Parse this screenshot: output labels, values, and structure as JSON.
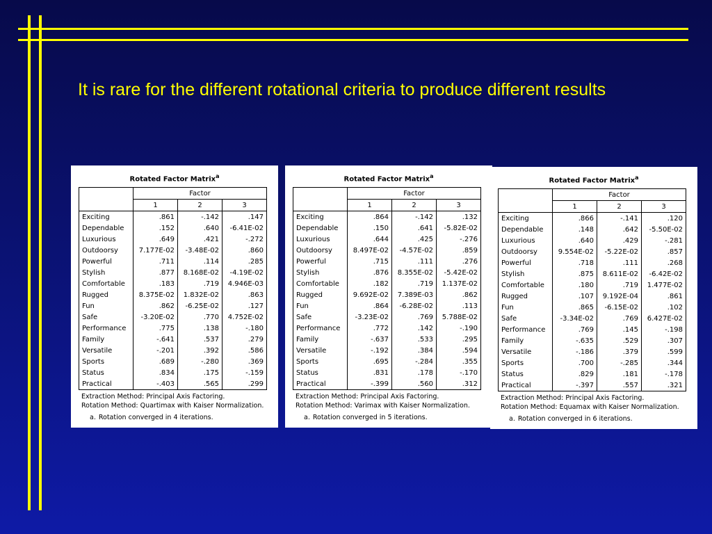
{
  "slide": {
    "title": "It is rare for the different rotational criteria to produce different results"
  },
  "common": {
    "matrix_title": "Rotated Factor Matrix",
    "superscript": "a",
    "factor_label": "Factor",
    "factor_numbers": [
      "1",
      "2",
      "3"
    ],
    "extraction": "Extraction Method: Principal Axis Factoring.",
    "note_mark": "a."
  },
  "panels": [
    {
      "rotation": "Rotation Method: Quartimax with Kaiser Normalization.",
      "converged": "Rotation converged in 4 iterations.",
      "rows": [
        [
          "Exciting",
          ".861",
          "-.142",
          ".147"
        ],
        [
          "Dependable",
          ".152",
          ".640",
          "-6.41E-02"
        ],
        [
          "Luxurious",
          ".649",
          ".421",
          "-.272"
        ],
        [
          "Outdoorsy",
          "7.177E-02",
          "-3.48E-02",
          ".860"
        ],
        [
          "Powerful",
          ".711",
          ".114",
          ".285"
        ],
        [
          "Stylish",
          ".877",
          "8.168E-02",
          "-4.19E-02"
        ],
        [
          "Comfortable",
          ".183",
          ".719",
          "4.946E-03"
        ],
        [
          "Rugged",
          "8.375E-02",
          "1.832E-02",
          ".863"
        ],
        [
          "Fun",
          ".862",
          "-6.25E-02",
          ".127"
        ],
        [
          "Safe",
          "-3.20E-02",
          ".770",
          "4.752E-02"
        ],
        [
          "Performance",
          ".775",
          ".138",
          "-.180"
        ],
        [
          "Family",
          "-.641",
          ".537",
          ".279"
        ],
        [
          "Versatile",
          "-.201",
          ".392",
          ".586"
        ],
        [
          "Sports",
          ".689",
          "-.280",
          ".369"
        ],
        [
          "Status",
          ".834",
          ".175",
          "-.159"
        ],
        [
          "Practical",
          "-.403",
          ".565",
          ".299"
        ]
      ]
    },
    {
      "rotation": "Rotation Method: Varimax with Kaiser Normalization.",
      "converged": "Rotation converged in 5 iterations.",
      "rows": [
        [
          "Exciting",
          ".864",
          "-.142",
          ".132"
        ],
        [
          "Dependable",
          ".150",
          ".641",
          "-5.82E-02"
        ],
        [
          "Luxurious",
          ".644",
          ".425",
          "-.276"
        ],
        [
          "Outdoorsy",
          "8.497E-02",
          "-4.57E-02",
          ".859"
        ],
        [
          "Powerful",
          ".715",
          ".111",
          ".276"
        ],
        [
          "Stylish",
          ".876",
          "8.355E-02",
          "-5.42E-02"
        ],
        [
          "Comfortable",
          ".182",
          ".719",
          "1.137E-02"
        ],
        [
          "Rugged",
          "9.692E-02",
          "7.389E-03",
          ".862"
        ],
        [
          "Fun",
          ".864",
          "-6.28E-02",
          ".113"
        ],
        [
          "Safe",
          "-3.23E-02",
          ".769",
          "5.788E-02"
        ],
        [
          "Performance",
          ".772",
          ".142",
          "-.190"
        ],
        [
          "Family",
          "-.637",
          ".533",
          ".295"
        ],
        [
          "Versatile",
          "-.192",
          ".384",
          ".594"
        ],
        [
          "Sports",
          ".695",
          "-.284",
          ".355"
        ],
        [
          "Status",
          ".831",
          ".178",
          "-.170"
        ],
        [
          "Practical",
          "-.399",
          ".560",
          ".312"
        ]
      ]
    },
    {
      "rotation": "Rotation Method: Equamax with Kaiser Normalization.",
      "converged": "Rotation converged in 6 iterations.",
      "rows": [
        [
          "Exciting",
          ".866",
          "-.141",
          ".120"
        ],
        [
          "Dependable",
          ".148",
          ".642",
          "-5.50E-02"
        ],
        [
          "Luxurious",
          ".640",
          ".429",
          "-.281"
        ],
        [
          "Outdoorsy",
          "9.554E-02",
          "-5.22E-02",
          ".857"
        ],
        [
          "Powerful",
          ".718",
          ".111",
          ".268"
        ],
        [
          "Stylish",
          ".875",
          "8.611E-02",
          "-6.42E-02"
        ],
        [
          "Comfortable",
          ".180",
          ".719",
          "1.477E-02"
        ],
        [
          "Rugged",
          ".107",
          "9.192E-04",
          ".861"
        ],
        [
          "Fun",
          ".865",
          "-6.15E-02",
          ".102"
        ],
        [
          "Safe",
          "-3.34E-02",
          ".769",
          "6.427E-02"
        ],
        [
          "Performance",
          ".769",
          ".145",
          "-.198"
        ],
        [
          "Family",
          "-.635",
          ".529",
          ".307"
        ],
        [
          "Versatile",
          "-.186",
          ".379",
          ".599"
        ],
        [
          "Sports",
          ".700",
          "-.285",
          ".344"
        ],
        [
          "Status",
          ".829",
          ".181",
          "-.178"
        ],
        [
          "Practical",
          "-.397",
          ".557",
          ".321"
        ]
      ]
    }
  ]
}
